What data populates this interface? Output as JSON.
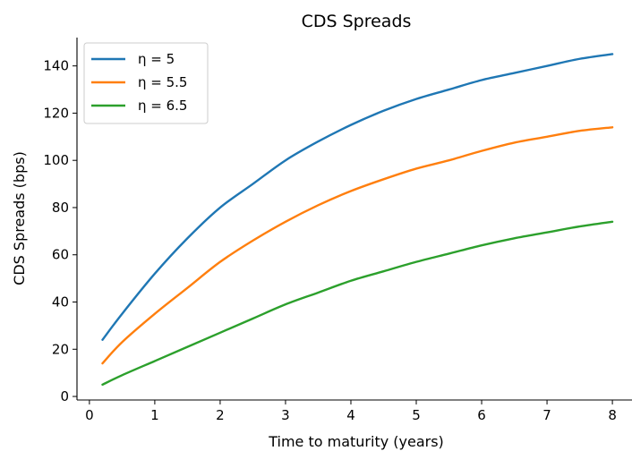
{
  "chart_data": {
    "type": "line",
    "title": "CDS Spreads",
    "xlabel": "Time to maturity (years)",
    "ylabel": "CDS Spreads (bps)",
    "xlim": [
      -0.19,
      8.3
    ],
    "ylim": [
      -1.5,
      152
    ],
    "xticks": [
      0,
      1,
      2,
      3,
      4,
      5,
      6,
      7,
      8
    ],
    "yticks": [
      0,
      20,
      40,
      60,
      80,
      100,
      120,
      140
    ],
    "grid": false,
    "legend_position": "top-left",
    "x": [
      0.2,
      0.5,
      1,
      1.5,
      2,
      2.5,
      3,
      3.5,
      4,
      4.5,
      5,
      5.5,
      6,
      6.5,
      7,
      7.5,
      8
    ],
    "series": [
      {
        "name": "η = 5",
        "color": "#1f77b4",
        "values": [
          24,
          35,
          52,
          67,
          80,
          90,
          100,
          108,
          115,
          121,
          126,
          130,
          134,
          137,
          140,
          143,
          145
        ]
      },
      {
        "name": "η = 5.5",
        "color": "#ff7f0e",
        "values": [
          14,
          23,
          35,
          46,
          57,
          66,
          74,
          81,
          87,
          92,
          96.5,
          100,
          104,
          107.5,
          110,
          112.5,
          114
        ]
      },
      {
        "name": "η = 6.5",
        "color": "#2ca02c",
        "values": [
          5,
          9,
          15,
          21,
          27,
          33,
          39,
          44,
          49,
          53,
          57,
          60.5,
          64,
          67,
          69.5,
          72,
          74
        ]
      }
    ]
  }
}
